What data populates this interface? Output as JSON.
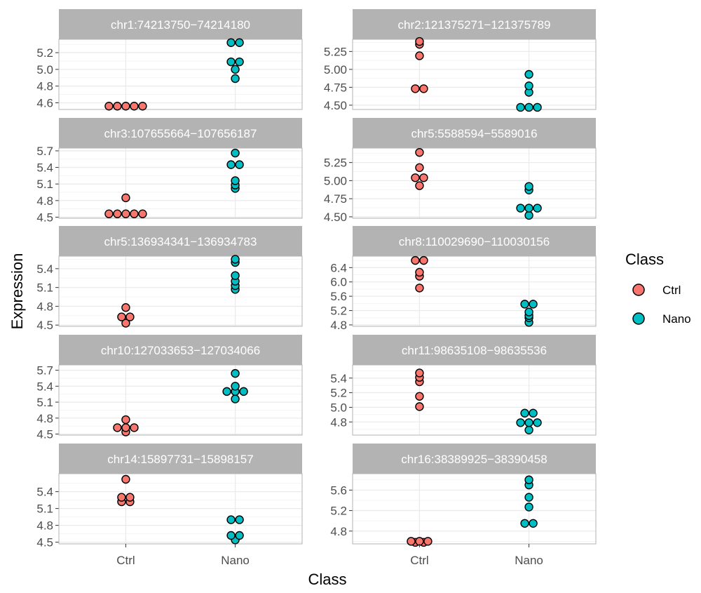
{
  "chart_data": {
    "type": "scatter",
    "subtype": "dotplot",
    "facet_layout": {
      "columns": 2,
      "rows": 5
    },
    "xlabel": "Class",
    "ylabel": "Expression",
    "categories": [
      "Ctrl",
      "Nano"
    ],
    "legend": {
      "title": "Class",
      "placement": "right",
      "entries": [
        {
          "label": "Ctrl",
          "color": "#F8766D"
        },
        {
          "label": "Nano",
          "color": "#00BFC4"
        }
      ]
    },
    "colors": {
      "Ctrl": "#F8766D",
      "Nano": "#00BFC4",
      "strip": "#b3b3b3",
      "grid": "#ebebeb",
      "panel_border": "#b3b3b3"
    },
    "facets": [
      {
        "title": "chr1:74213750−74214180",
        "ylim": [
          4.52,
          5.36
        ],
        "yticks": [
          4.6,
          4.8,
          5.0,
          5.2
        ],
        "ytick_labels": [
          "4.6",
          "4.8",
          "5.0",
          "5.2"
        ],
        "points": {
          "Ctrl": [
            4.56,
            4.56,
            4.56,
            4.56,
            4.56
          ],
          "Nano": [
            4.89,
            5.0,
            5.09,
            5.09,
            5.32,
            5.32
          ]
        }
      },
      {
        "title": "chr2:121375271−121375789",
        "ylim": [
          4.44,
          5.42
        ],
        "yticks": [
          4.5,
          4.75,
          5.0,
          5.25
        ],
        "ytick_labels": [
          "4.50",
          "4.75",
          "5.00",
          "5.25"
        ],
        "points": {
          "Ctrl": [
            4.73,
            4.73,
            5.19,
            5.35,
            5.39
          ],
          "Nano": [
            4.47,
            4.47,
            4.47,
            4.68,
            4.77,
            4.93
          ]
        }
      },
      {
        "title": "chr3:107655664−107656187",
        "ylim": [
          4.48,
          5.75
        ],
        "yticks": [
          4.5,
          4.8,
          5.1,
          5.4,
          5.7
        ],
        "ytick_labels": [
          "4.5",
          "4.8",
          "5.1",
          "5.4",
          "5.7"
        ],
        "points": {
          "Ctrl": [
            4.56,
            4.56,
            4.56,
            4.56,
            4.56,
            4.85
          ],
          "Nano": [
            5.02,
            5.08,
            5.16,
            5.45,
            5.45,
            5.66
          ]
        }
      },
      {
        "title": "chr5:5588594−5589016",
        "ylim": [
          4.48,
          5.45
        ],
        "yticks": [
          4.5,
          4.75,
          5.0,
          5.25
        ],
        "ytick_labels": [
          "4.50",
          "4.75",
          "5.00",
          "5.25"
        ],
        "points": {
          "Ctrl": [
            4.93,
            5.04,
            5.04,
            5.18,
            5.39
          ],
          "Nano": [
            4.52,
            4.62,
            4.62,
            4.62,
            4.87,
            4.92
          ]
        }
      },
      {
        "title": "chr5:136934341−136934783",
        "ylim": [
          4.48,
          5.6
        ],
        "yticks": [
          4.5,
          4.8,
          5.1,
          5.4
        ],
        "ytick_labels": [
          "4.5",
          "4.8",
          "5.1",
          "5.4"
        ],
        "points": {
          "Ctrl": [
            4.53,
            4.63,
            4.63,
            4.78
          ],
          "Nano": [
            5.07,
            5.13,
            5.2,
            5.29,
            5.5,
            5.55
          ]
        }
      },
      {
        "title": "chr8:110029690−110030156",
        "ylim": [
          4.76,
          6.72
        ],
        "yticks": [
          4.8,
          5.2,
          5.6,
          6.0,
          6.4
        ],
        "ytick_labels": [
          "4.8",
          "5.2",
          "5.6",
          "6.0",
          "6.4"
        ],
        "points": {
          "Ctrl": [
            5.83,
            6.16,
            6.27,
            6.6,
            6.6
          ],
          "Nano": [
            4.87,
            5.0,
            5.06,
            5.16,
            5.38,
            5.38
          ]
        }
      },
      {
        "title": "chr10:127033653−127034066",
        "ylim": [
          4.48,
          5.8
        ],
        "yticks": [
          4.5,
          4.8,
          5.1,
          5.4,
          5.7
        ],
        "ytick_labels": [
          "4.5",
          "4.8",
          "5.1",
          "5.4",
          "5.7"
        ],
        "points": {
          "Ctrl": [
            4.54,
            4.62,
            4.62,
            4.62,
            4.77
          ],
          "Nano": [
            5.16,
            5.3,
            5.3,
            5.3,
            5.4,
            5.64
          ]
        }
      },
      {
        "title": "chr11:98635108−98635536",
        "ylim": [
          4.62,
          5.58
        ],
        "yticks": [
          4.8,
          5.0,
          5.2,
          5.4
        ],
        "ytick_labels": [
          "4.8",
          "5.0",
          "5.2",
          "5.4"
        ],
        "points": {
          "Ctrl": [
            5.01,
            5.15,
            5.35,
            5.41,
            5.47
          ],
          "Nano": [
            4.69,
            4.79,
            4.79,
            4.79,
            4.92,
            4.92
          ]
        }
      },
      {
        "title": "chr14:15897731−15898157",
        "ylim": [
          4.47,
          5.72
        ],
        "yticks": [
          4.5,
          4.8,
          5.1,
          5.4
        ],
        "ytick_labels": [
          "4.5",
          "4.8",
          "5.1",
          "5.4"
        ],
        "points": {
          "Ctrl": [
            5.22,
            5.22,
            5.3,
            5.3,
            5.62
          ],
          "Nano": [
            4.54,
            4.62,
            4.62,
            4.9,
            4.9
          ]
        }
      },
      {
        "title": "chr16:38389925−38390458",
        "ylim": [
          4.55,
          5.92
        ],
        "yticks": [
          4.8,
          5.2,
          5.6
        ],
        "ytick_labels": [
          "4.8",
          "5.2",
          "5.6"
        ],
        "points": {
          "Ctrl": [
            4.58,
            4.58,
            4.6,
            4.6,
            4.6
          ],
          "Nano": [
            4.95,
            4.95,
            5.27,
            5.46,
            5.7,
            5.8
          ]
        }
      }
    ]
  }
}
